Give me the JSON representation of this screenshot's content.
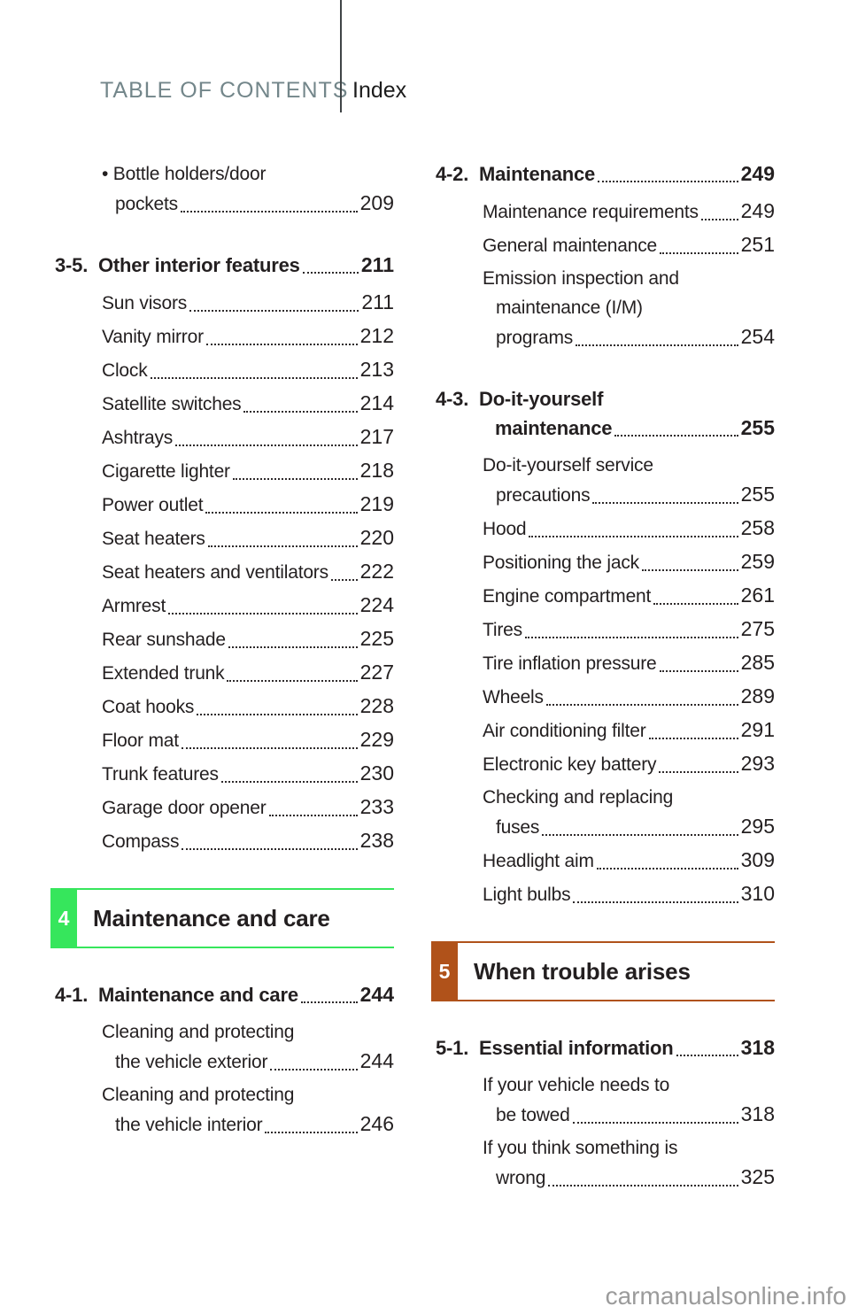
{
  "header": {
    "title": "TABLE OF CONTENTS",
    "index": "Index"
  },
  "watermark": "carmanualsonline.info",
  "colors": {
    "header_title": "#73868a",
    "divider": "#3f4446",
    "chapter_4": "#36e65c",
    "chapter_5": "#b0521a",
    "watermark": "#9b9b9b"
  },
  "columns": {
    "left": [
      {
        "type": "entry",
        "pre": [
          "• Bottle holders/door"
        ],
        "label": "pockets",
        "page": "209"
      },
      {
        "type": "section",
        "num": "3-5.",
        "title": "Other interior features",
        "page": "211"
      },
      {
        "type": "entry",
        "label": "Sun visors",
        "page": "211"
      },
      {
        "type": "entry",
        "label": "Vanity mirror",
        "page": "212"
      },
      {
        "type": "entry",
        "label": "Clock",
        "page": "213"
      },
      {
        "type": "entry",
        "label": "Satellite switches",
        "page": "214"
      },
      {
        "type": "entry",
        "label": "Ashtrays",
        "page": "217"
      },
      {
        "type": "entry",
        "label": "Cigarette lighter",
        "page": "218"
      },
      {
        "type": "entry",
        "label": "Power outlet",
        "page": "219"
      },
      {
        "type": "entry",
        "label": "Seat heaters",
        "page": "220"
      },
      {
        "type": "entry",
        "label": "Seat heaters and ventilators",
        "page": "222"
      },
      {
        "type": "entry",
        "label": "Armrest",
        "page": "224"
      },
      {
        "type": "entry",
        "label": "Rear sunshade",
        "page": "225"
      },
      {
        "type": "entry",
        "label": "Extended trunk",
        "page": "227"
      },
      {
        "type": "entry",
        "label": "Coat hooks",
        "page": "228"
      },
      {
        "type": "entry",
        "label": "Floor mat",
        "page": "229"
      },
      {
        "type": "entry",
        "label": "Trunk features",
        "page": "230"
      },
      {
        "type": "entry",
        "label": "Garage door opener",
        "page": "233"
      },
      {
        "type": "entry",
        "label": "Compass",
        "page": "238"
      },
      {
        "type": "chapter",
        "num": "4",
        "title": "Maintenance and care",
        "color": "#36e65c"
      },
      {
        "type": "section",
        "num": "4-1.",
        "title": "Maintenance and care",
        "page": "244"
      },
      {
        "type": "entry",
        "pre": [
          "Cleaning and protecting"
        ],
        "label": "the vehicle exterior",
        "page": "244"
      },
      {
        "type": "entry",
        "pre": [
          "Cleaning and protecting"
        ],
        "label": "the vehicle interior",
        "page": "246"
      }
    ],
    "right": [
      {
        "type": "section",
        "num": "4-2.",
        "title": "Maintenance",
        "page": "249"
      },
      {
        "type": "entry",
        "label": "Maintenance requirements",
        "page": "249"
      },
      {
        "type": "entry",
        "label": "General maintenance",
        "page": "251"
      },
      {
        "type": "entry",
        "pre": [
          "Emission inspection and",
          "maintenance (I/M)"
        ],
        "label": "programs",
        "page": "254"
      },
      {
        "type": "section",
        "num": "4-3.",
        "title_pre": [
          "Do-it-yourself"
        ],
        "title": "maintenance",
        "page": "255"
      },
      {
        "type": "entry",
        "pre": [
          "Do-it-yourself service"
        ],
        "label": "precautions",
        "page": "255"
      },
      {
        "type": "entry",
        "label": "Hood",
        "page": "258"
      },
      {
        "type": "entry",
        "label": "Positioning the jack",
        "page": "259"
      },
      {
        "type": "entry",
        "label": "Engine compartment",
        "page": "261"
      },
      {
        "type": "entry",
        "label": "Tires",
        "page": "275"
      },
      {
        "type": "entry",
        "label": "Tire inflation pressure",
        "page": "285"
      },
      {
        "type": "entry",
        "label": "Wheels",
        "page": "289"
      },
      {
        "type": "entry",
        "label": "Air conditioning filter",
        "page": "291"
      },
      {
        "type": "entry",
        "label": "Electronic key battery",
        "page": "293"
      },
      {
        "type": "entry",
        "pre": [
          "Checking and replacing"
        ],
        "label": "fuses",
        "page": "295"
      },
      {
        "type": "entry",
        "label": "Headlight aim",
        "page": "309"
      },
      {
        "type": "entry",
        "label": "Light bulbs",
        "page": "310"
      },
      {
        "type": "chapter",
        "num": "5",
        "title": "When trouble arises",
        "color": "#b0521a"
      },
      {
        "type": "section",
        "num": "5-1.",
        "title": "Essential information",
        "page": "318"
      },
      {
        "type": "entry",
        "pre": [
          "If your vehicle needs to"
        ],
        "label": "be towed",
        "page": "318"
      },
      {
        "type": "entry",
        "pre": [
          "If you think something is"
        ],
        "label": "wrong",
        "page": "325"
      }
    ]
  }
}
